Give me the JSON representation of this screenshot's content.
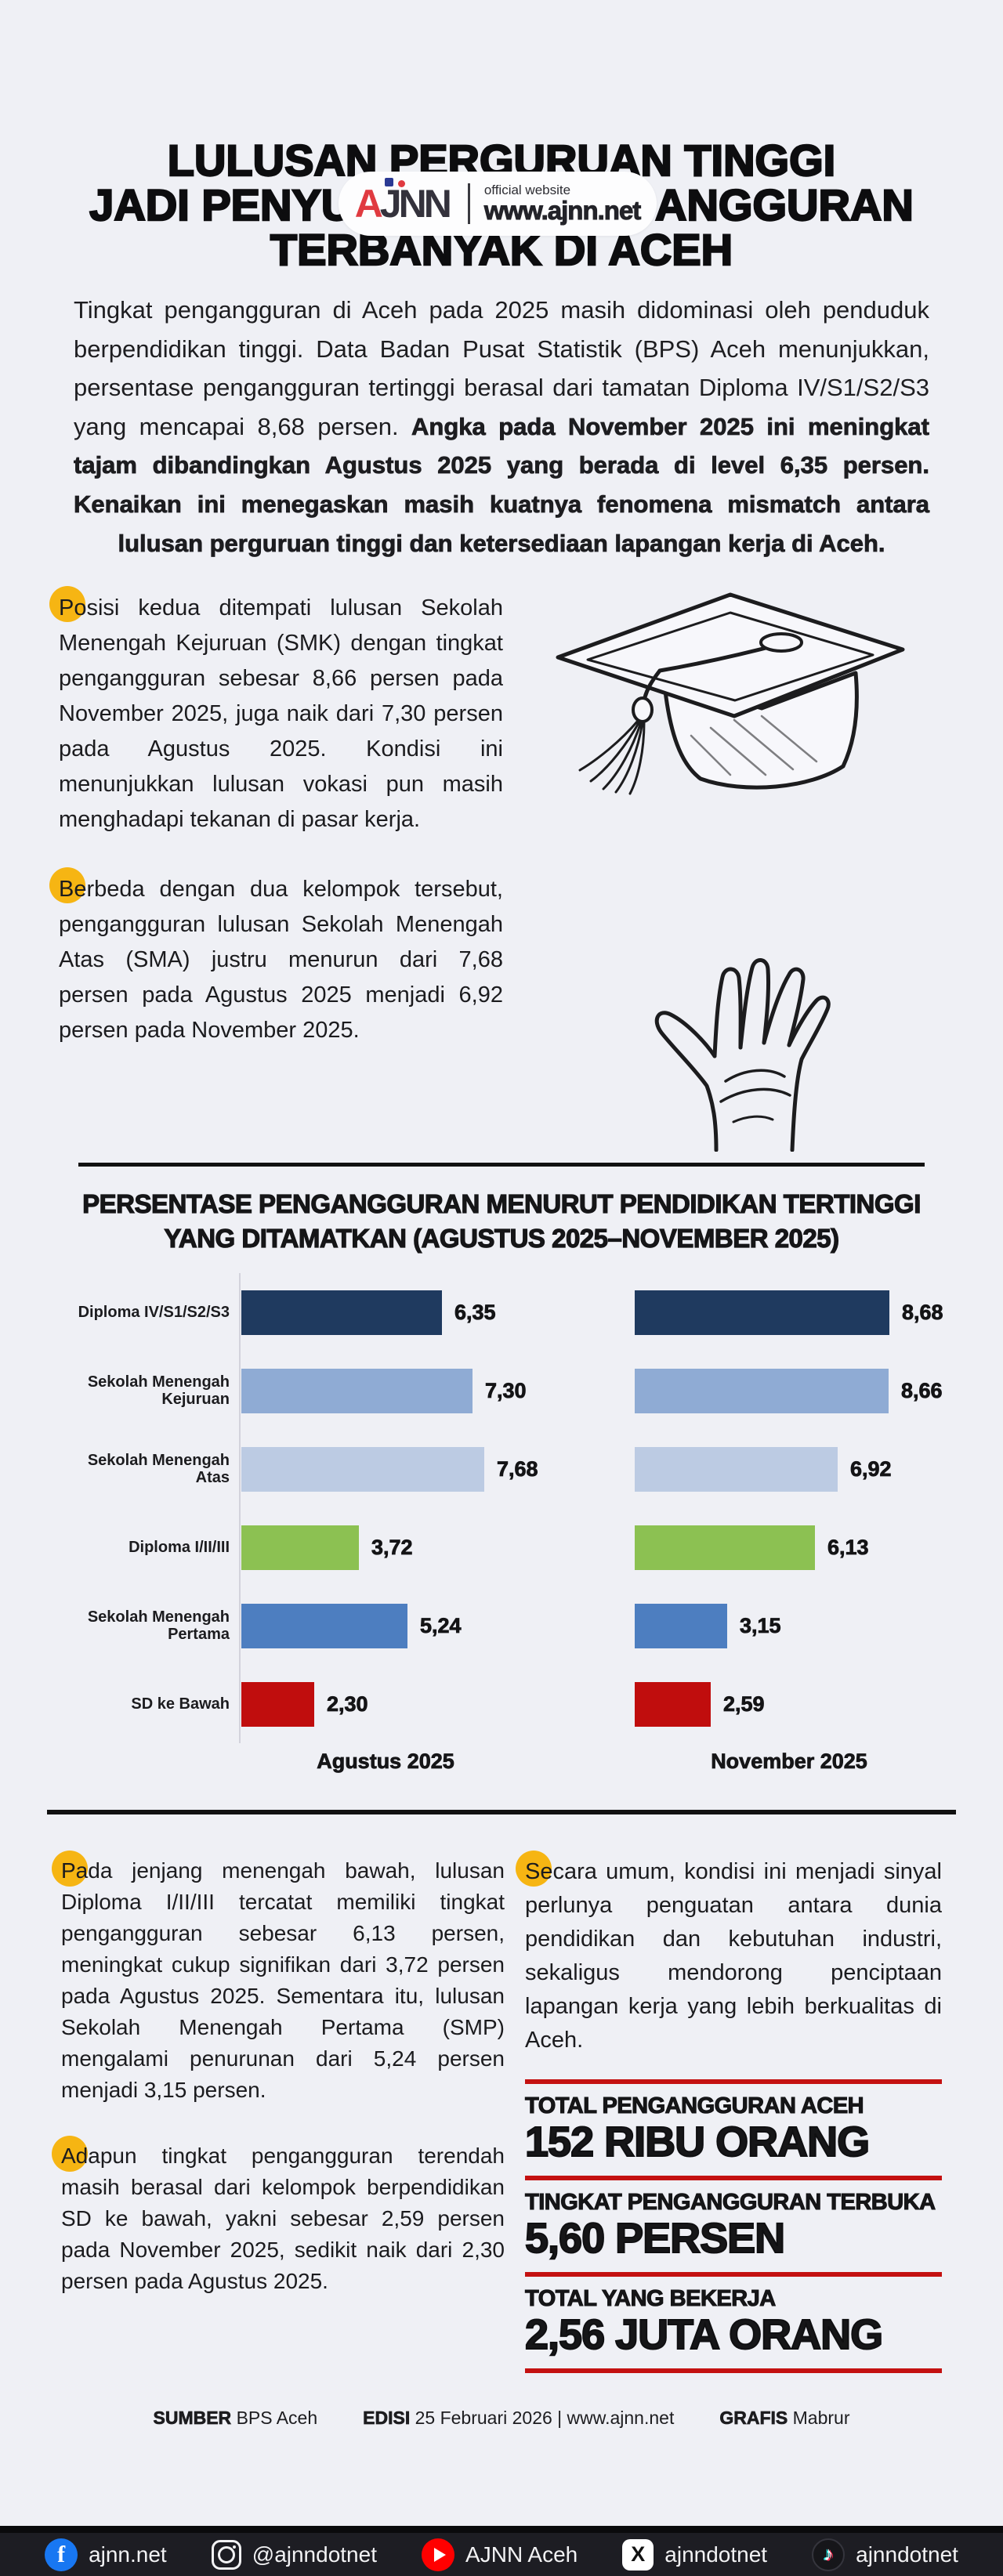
{
  "page": {
    "background": "#eff0f5",
    "bullet_dot_color": "#f6b513",
    "accent_red": "#c41111"
  },
  "header": {
    "logo_text": "AJNN",
    "tagline": "official website",
    "site_url": "www.ajnn.net"
  },
  "title": {
    "line1": "LULUSAN PERGURUAN TINGGI",
    "line2": "JADI PENYUMBANG PENGANGGURAN",
    "line3": "TERBANYAK DI ACEH"
  },
  "intro": {
    "normal": "Tingkat pengangguran di Aceh pada 2025 masih didominasi oleh penduduk berpendidikan tinggi. Data Badan Pusat Statistik (BPS) Aceh menunjukkan, persentase pengangguran tertinggi berasal dari tamatan Diploma IV/S1/S2/S3 yang mencapai 8,68 persen. ",
    "bold": "Angka pada November 2025 ini meningkat tajam dibandingkan Agustus 2025 yang berada di level 6,35 persen. Kenaikan ini menegaskan masih kuatnya fenomena mismatch antara lulusan perguruan tinggi dan ketersediaan lapangan kerja di Aceh."
  },
  "bullets": {
    "b1": "Posisi kedua ditempati lulusan Sekolah Menengah Kejuruan (SMK) dengan tingkat pengangguran sebesar 8,66 persen pada November 2025, juga naik dari 7,30 persen pada Agustus 2025. Kondisi ini menunjukkan lulusan vokasi pun masih menghadapi tekanan di pasar kerja.",
    "b2": "Berbeda dengan dua kelompok tersebut, pengangguran lulusan Sekolah Menengah Atas (SMA) justru menurun dari 7,68 persen pada Agustus 2025 menjadi 6,92 persen pada November 2025.",
    "b3": "Pada jenjang menengah bawah, lulusan Diploma I/II/III tercatat memiliki tingkat pengangguran sebesar 6,13 persen, meningkat cukup signifikan dari 3,72 persen pada Agustus 2025. Sementara itu, lulusan Sekolah Menengah Pertama (SMP) mengalami penurunan dari 5,24 persen menjadi 3,15 persen.",
    "b4": "Adapun tingkat pengangguran terendah masih berasal dari kelompok berpendidikan SD ke bawah, yakni sebesar 2,59 persen pada November 2025, sedikit naik dari 2,30 persen pada Agustus 2025.",
    "b5": "Secara umum, kondisi ini menjadi sinyal perlunya penguatan antara dunia pendidikan dan kebutuhan industri, sekaligus mendorong penciptaan lapangan kerja yang lebih berkualitas di Aceh."
  },
  "chart_data": {
    "type": "bar",
    "orientation": "horizontal",
    "title_line1": "PERSENTASE PENGANGGURAN MENURUT PENDIDIKAN TERTINGGI",
    "title_line2": "YANG DITAMATKAN (AGUSTUS 2025–NOVEMBER 2025)",
    "categories": [
      "Diploma IV/S1/S2/S3",
      "Sekolah Menengah Kejuruan",
      "Sekolah Menengah Atas",
      "Diploma I/II/III",
      "Sekolah Menengah Pertama",
      "SD ke Bawah"
    ],
    "series": [
      {
        "name": "Agustus 2025",
        "values": [
          6.35,
          7.3,
          7.68,
          3.72,
          5.24,
          2.3
        ],
        "labels": [
          "6,35",
          "7,30",
          "7,68",
          "3,72",
          "5,24",
          "2,30"
        ]
      },
      {
        "name": "November 2025",
        "values": [
          8.68,
          8.66,
          6.92,
          6.13,
          3.15,
          2.59
        ],
        "labels": [
          "8,68",
          "8,66",
          "6,92",
          "6,13",
          "3,15",
          "2,59"
        ]
      }
    ],
    "bar_colors": [
      "#1f3a5f",
      "#8fabd4",
      "#bccbe3",
      "#8cc152",
      "#4d7ec0",
      "#c00d0d"
    ],
    "xlim": [
      0,
      8.68
    ],
    "grid": false,
    "unit": "persen",
    "legend_position": "below-each-panel"
  },
  "stats": {
    "items": [
      {
        "label": "TOTAL PENGANGGURAN ACEH",
        "value": "152 RIBU ORANG"
      },
      {
        "label": "TINGKAT PENGANGGURAN TERBUKA",
        "value": "5,60 PERSEN"
      },
      {
        "label": "TOTAL YANG BEKERJA",
        "value": "2,56 JUTA ORANG"
      }
    ]
  },
  "credits": {
    "sumber_label": "SUMBER",
    "sumber_value": "BPS Aceh",
    "edisi_label": "EDISI",
    "edisi_value": "25 Februari 2026 | www.ajnn.net",
    "grafis_label": "GRAFIS",
    "grafis_value": "Mabrur"
  },
  "social": {
    "facebook": "ajnn.net",
    "instagram": "@ajnndotnet",
    "youtube": "AJNN Aceh",
    "x": "ajnndotnet",
    "tiktok": "ajnndotnet"
  }
}
